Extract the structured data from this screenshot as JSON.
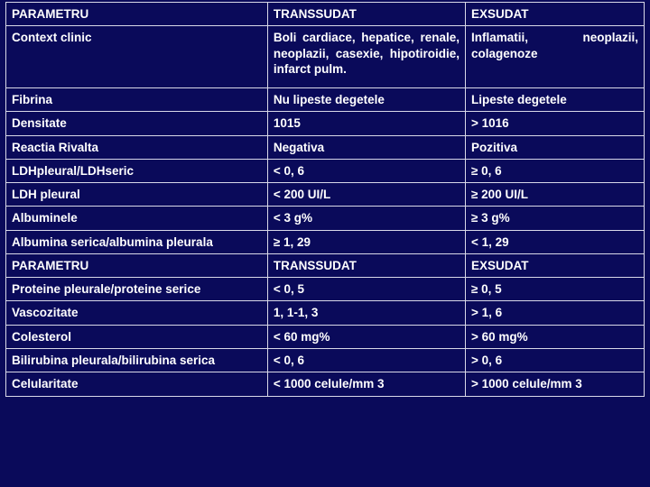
{
  "table": {
    "background_color": "#0a0a5a",
    "border_color": "#d8d8e8",
    "text_color": "#ffffff",
    "font_family": "Verdana",
    "font_size_pt": 10,
    "font_weight": 700,
    "col_widths_pct": [
      41,
      31,
      28
    ],
    "rows": [
      {
        "cells": [
          "PARAMETRU",
          "TRANSSUDAT",
          "EXSUDAT"
        ],
        "header": true
      },
      {
        "cells": [
          "Context clinic",
          "Boli cardiace, hepatice, renale, neoplazii, casexie, hipotiroidie, infarct pulm.",
          "Inflamatii, neoplazii, colagenoze"
        ],
        "justify": [
          false,
          true,
          true
        ],
        "tall": true
      },
      {
        "cells": [
          "Fibrina",
          "Nu lipeste degetele",
          "Lipeste degetele"
        ]
      },
      {
        "cells": [
          "Densitate",
          "1015",
          "> 1016"
        ]
      },
      {
        "cells": [
          "Reactia Rivalta",
          "Negativa",
          "Pozitiva"
        ]
      },
      {
        "cells": [
          "LDHpleural/LDHseric",
          "< 0, 6",
          "≥ 0, 6"
        ]
      },
      {
        "cells": [
          "LDH pleural",
          "< 200 UI/L",
          "≥ 200 UI/L"
        ]
      },
      {
        "cells": [
          "Albuminele",
          "< 3 g%",
          "≥ 3 g%"
        ]
      },
      {
        "cells": [
          "Albumina serica/albumina pleurala",
          "≥ 1, 29",
          "< 1, 29"
        ],
        "justify": [
          true,
          false,
          false
        ]
      },
      {
        "cells": [
          "PARAMETRU",
          "TRANSSUDAT",
          "EXSUDAT"
        ],
        "header": true
      },
      {
        "cells": [
          "Proteine pleurale/proteine serice",
          "< 0, 5",
          "≥ 0, 5"
        ],
        "justify": [
          true,
          false,
          false
        ]
      },
      {
        "cells": [
          "Vascozitate",
          "1, 1-1, 3",
          "> 1, 6"
        ]
      },
      {
        "cells": [
          "Colesterol",
          "< 60 mg%",
          "> 60 mg%"
        ]
      },
      {
        "cells": [
          "Bilirubina pleurala/bilirubina serica",
          "< 0, 6",
          "> 0, 6"
        ],
        "justify": [
          true,
          false,
          false
        ]
      },
      {
        "cells": [
          "Celularitate",
          "< 1000 celule/mm 3",
          "> 1000 celule/mm 3"
        ]
      }
    ]
  }
}
